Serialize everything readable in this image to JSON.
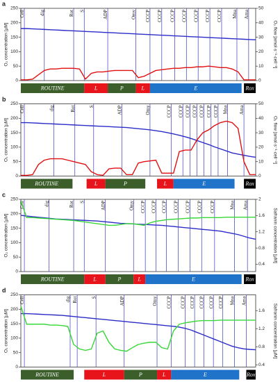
{
  "chart_data": [
    {
      "type": "line",
      "panel": "a",
      "ylabel": "O₂ concentration [µM]",
      "y2label": "O₂ flow [amol·s⁻¹·cell⁻¹]",
      "xlim": [
        0,
        100
      ],
      "ylim": [
        0,
        250
      ],
      "yticks": [
        0,
        50,
        100,
        150,
        200,
        250
      ],
      "y2lim": [
        0,
        50
      ],
      "y2ticks": [
        0,
        10,
        20,
        30,
        40,
        50
      ],
      "x": [
        0,
        2.5,
        5,
        7.5,
        10,
        12.5,
        15,
        17.5,
        20,
        22.5,
        25,
        27.5,
        30,
        32.5,
        35,
        37.5,
        40,
        42.5,
        45,
        47.5,
        50,
        52.5,
        55,
        57.5,
        60,
        62.5,
        65,
        67.5,
        70,
        72.5,
        75,
        77.5,
        80,
        82.5,
        85,
        87.5,
        90,
        92.5,
        95,
        97.5,
        100
      ],
      "series": [
        {
          "color": "#2b2bc8",
          "values": [
            180,
            180,
            179,
            178,
            177,
            176,
            175,
            174,
            173,
            172,
            171,
            170,
            169,
            168,
            167,
            166,
            165,
            164,
            163,
            162,
            161,
            160,
            159,
            158,
            157,
            156,
            155,
            154,
            153,
            152,
            151,
            150,
            149,
            148,
            147,
            146,
            145,
            144,
            143,
            142,
            141
          ]
        },
        {
          "color": "#e01010",
          "axis": "y2",
          "values": [
            0.5,
            0.5,
            1,
            4,
            7,
            8,
            8,
            8.5,
            8.5,
            8.5,
            8,
            1,
            5,
            6,
            6,
            6.5,
            7,
            7,
            7,
            7,
            2,
            3,
            5,
            7,
            7.5,
            8,
            8.5,
            8.5,
            9,
            9,
            9.5,
            9.5,
            10,
            9.5,
            9,
            9,
            8,
            6,
            0.5,
            0.5,
            0.5
          ]
        }
      ],
      "events": [
        {
          "label": "Cell",
          "x": 1.5
        },
        {
          "label": "dig",
          "x": 10
        },
        {
          "label": "Rot",
          "x": 22.5
        },
        {
          "label": "S",
          "x": 27
        },
        {
          "label": "ADP",
          "x": 37
        },
        {
          "label": "Omy",
          "x": 49
        },
        {
          "label": "CCCP",
          "x": 55
        },
        {
          "label": "CCCP",
          "x": 60
        },
        {
          "label": "CCCP",
          "x": 65.5
        },
        {
          "label": "CCCP",
          "x": 70.5
        },
        {
          "label": "CCCP",
          "x": 75.5
        },
        {
          "label": "CCCP",
          "x": 80.5
        },
        {
          "label": "CCCP",
          "x": 85.5
        },
        {
          "label": "Mna",
          "x": 92
        },
        {
          "label": "Ama",
          "x": 97
        }
      ],
      "states": [
        {
          "label": "ROUTINE",
          "start": 0,
          "end": 27,
          "color": "#3b5e2b"
        },
        {
          "label": "L",
          "start": 27,
          "end": 37,
          "color": "#e8141c"
        },
        {
          "label": "P",
          "start": 37,
          "end": 49,
          "color": "#3b5e2b"
        },
        {
          "label": "L",
          "start": 49,
          "end": 55,
          "color": "#e8141c"
        },
        {
          "label": "E",
          "start": 55,
          "end": 94,
          "color": "#1f73c8"
        },
        {
          "label": "Rox",
          "start": 95,
          "end": 100,
          "color": "#000000"
        }
      ]
    },
    {
      "type": "line",
      "panel": "b",
      "ylabel": "O₂ concentration [µM]",
      "y2label": "O₂ flow [amol·s⁻¹·cell⁻¹]",
      "xlim": [
        0,
        100
      ],
      "ylim": [
        0,
        250
      ],
      "yticks": [
        0,
        50,
        100,
        150,
        200,
        250
      ],
      "y2lim": [
        0,
        50
      ],
      "y2ticks": [
        0,
        10,
        20,
        30,
        40,
        50
      ],
      "x": [
        0,
        2.5,
        5,
        7.5,
        10,
        12.5,
        15,
        17.5,
        20,
        22.5,
        25,
        27.5,
        30,
        32.5,
        35,
        37.5,
        40,
        42.5,
        45,
        47.5,
        50,
        52.5,
        55,
        57.5,
        60,
        62.5,
        65,
        67.5,
        70,
        72.5,
        75,
        77.5,
        80,
        82.5,
        85,
        87.5,
        90,
        92.5,
        95,
        97.5,
        100
      ],
      "series": [
        {
          "color": "#2b2bc8",
          "values": [
            185,
            185,
            184,
            183,
            182,
            181,
            180,
            179,
            178,
            177,
            176,
            175,
            174,
            173,
            172,
            171,
            170,
            169,
            168,
            166,
            164,
            162,
            160,
            157,
            154,
            150,
            146,
            141,
            136,
            130,
            123,
            116,
            109,
            101,
            94,
            87,
            80,
            76,
            72,
            68,
            65
          ]
        },
        {
          "color": "#e01010",
          "axis": "y2",
          "values": [
            0.5,
            0.5,
            1,
            8,
            11,
            12,
            12,
            12,
            11,
            10,
            9,
            8,
            3,
            1,
            0.5,
            5,
            5.5,
            5.5,
            1,
            1,
            9,
            10,
            10.5,
            11,
            2,
            2,
            2,
            17,
            18,
            18,
            25,
            30,
            32,
            35,
            37,
            38,
            37,
            33,
            10,
            1,
            1
          ]
        }
      ],
      "events": [
        {
          "label": "Cell",
          "x": 1.5
        },
        {
          "label": "dig",
          "x": 14
        },
        {
          "label": "Rot",
          "x": 23
        },
        {
          "label": "S",
          "x": 31
        },
        {
          "label": "ADP",
          "x": 43
        },
        {
          "label": "Omy",
          "x": 55
        },
        {
          "label": "CCCP",
          "x": 64
        },
        {
          "label": "CCCP",
          "x": 69
        },
        {
          "label": "CCCP",
          "x": 72
        },
        {
          "label": "CCCP",
          "x": 75
        },
        {
          "label": "CCCP",
          "x": 78
        },
        {
          "label": "CCCP",
          "x": 81
        },
        {
          "label": "CCCP",
          "x": 84
        },
        {
          "label": "Mna",
          "x": 88
        },
        {
          "label": "Ama",
          "x": 95
        }
      ],
      "states": [
        {
          "label": "ROUTINE",
          "start": 0,
          "end": 22,
          "color": "#3b5e2b"
        },
        {
          "label": "L",
          "start": 28,
          "end": 36,
          "color": "#e8141c"
        },
        {
          "label": "P",
          "start": 36,
          "end": 53,
          "color": "#3b5e2b"
        },
        {
          "label": "L",
          "start": 58,
          "end": 65,
          "color": "#e8141c"
        },
        {
          "label": "E",
          "start": 65,
          "end": 91,
          "color": "#1f73c8"
        },
        {
          "label": "Rox",
          "start": 95,
          "end": 100,
          "color": "#000000"
        }
      ]
    },
    {
      "type": "line",
      "panel": "c",
      "ylabel": "O₂ concentration [µM]",
      "y2label": "Safranin concentration [µM]",
      "xlim": [
        0,
        100
      ],
      "ylim": [
        0,
        250
      ],
      "yticks": [
        0,
        50,
        100,
        150,
        200,
        250
      ],
      "y2lim": [
        0.22,
        2
      ],
      "y2ticks": [
        0.4,
        0.8,
        1.2,
        1.6,
        2
      ],
      "x": [
        0,
        2.5,
        5,
        7.5,
        10,
        12.5,
        15,
        17.5,
        20,
        22.5,
        25,
        27.5,
        30,
        32.5,
        35,
        37.5,
        40,
        42.5,
        45,
        47.5,
        50,
        52.5,
        55,
        57.5,
        60,
        62.5,
        65,
        67.5,
        70,
        72.5,
        75,
        77.5,
        80,
        82.5,
        85,
        87.5,
        90,
        92.5,
        95,
        97.5,
        100
      ],
      "series": [
        {
          "color": "#2b2bc8",
          "values": [
            195,
            192,
            190,
            188,
            186,
            184,
            182,
            181,
            180,
            179,
            178,
            177,
            176,
            175,
            173,
            171,
            169,
            167,
            166,
            165,
            164,
            163,
            162,
            161,
            160,
            158,
            156,
            154,
            152,
            150,
            148,
            146,
            144,
            142,
            140,
            136,
            132,
            128,
            122,
            116,
            112
          ]
        },
        {
          "color": "#38d838",
          "axis": "y2",
          "values": [
            1.95,
            1.55,
            1.55,
            1.54,
            1.53,
            1.52,
            1.51,
            1.5,
            1.49,
            1.48,
            1.46,
            1.44,
            1.42,
            1.4,
            1.38,
            1.36,
            1.36,
            1.38,
            1.4,
            1.4,
            1.38,
            1.36,
            1.42,
            1.46,
            1.48,
            1.5,
            1.51,
            1.52,
            1.53,
            1.54,
            1.54,
            1.55,
            1.55,
            1.55,
            1.55,
            1.56,
            1.56,
            1.56,
            1.56,
            1.56,
            1.56
          ]
        }
      ],
      "events": [
        {
          "label": "Cell",
          "x": 1.5
        },
        {
          "label": "dig",
          "x": 12
        },
        {
          "label": "Rot",
          "x": 22.5
        },
        {
          "label": "S",
          "x": 27
        },
        {
          "label": "ADP",
          "x": 36
        },
        {
          "label": "Omy",
          "x": 48
        },
        {
          "label": "CCCP",
          "x": 53
        },
        {
          "label": "CCCP",
          "x": 57.5
        },
        {
          "label": "CCCP",
          "x": 62
        },
        {
          "label": "CCCP",
          "x": 67
        },
        {
          "label": "CCCP",
          "x": 72
        },
        {
          "label": "CCCP",
          "x": 77
        },
        {
          "label": "CCCP",
          "x": 82.5
        },
        {
          "label": "Mna",
          "x": 91
        },
        {
          "label": "Ama",
          "x": 96.5
        }
      ],
      "states": [
        {
          "label": "ROUTINE",
          "start": 0,
          "end": 27,
          "color": "#3b5e2b"
        },
        {
          "label": "L",
          "start": 27,
          "end": 36,
          "color": "#e8141c"
        },
        {
          "label": "P",
          "start": 36,
          "end": 48,
          "color": "#3b5e2b"
        },
        {
          "label": "L",
          "start": 48,
          "end": 53,
          "color": "#e8141c"
        },
        {
          "label": "E",
          "start": 53,
          "end": 94,
          "color": "#1f73c8"
        },
        {
          "label": "Rox",
          "start": 95,
          "end": 100,
          "color": "#000000"
        }
      ]
    },
    {
      "type": "line",
      "panel": "d",
      "ylabel": "O₂ concentration [µM]",
      "y2label": "Safranin concentration [µM]",
      "xlim": [
        0,
        100
      ],
      "ylim": [
        0,
        250
      ],
      "yticks": [
        0,
        50,
        100,
        150,
        200,
        250
      ],
      "y2lim": [
        0.35,
        1.95
      ],
      "y2ticks": [
        0.4,
        0.8,
        1.2,
        1.6
      ],
      "x": [
        0,
        2.5,
        5,
        7.5,
        10,
        12.5,
        15,
        17.5,
        20,
        22.5,
        25,
        27.5,
        30,
        32.5,
        35,
        37.5,
        40,
        42.5,
        45,
        47.5,
        50,
        52.5,
        55,
        57.5,
        60,
        62.5,
        65,
        67.5,
        70,
        72.5,
        75,
        77.5,
        80,
        82.5,
        85,
        87.5,
        90,
        92.5,
        95,
        97.5,
        100
      ],
      "series": [
        {
          "color": "#2b2bc8",
          "values": [
            185,
            185,
            184,
            183,
            182,
            181,
            180,
            179,
            177,
            175,
            173,
            171,
            169,
            167,
            165,
            163,
            161,
            159,
            157,
            155,
            153,
            151,
            149,
            147,
            145,
            143,
            141,
            138,
            134,
            128,
            120,
            112,
            104,
            96,
            88,
            80,
            72,
            67,
            63,
            61,
            60
          ]
        },
        {
          "color": "#38d838",
          "axis": "y2",
          "values": [
            1.7,
            1.3,
            1.3,
            1.3,
            1.3,
            1.28,
            1.28,
            1.27,
            1.25,
            0.85,
            0.75,
            0.72,
            0.75,
            1.1,
            1.15,
            0.9,
            0.75,
            0.72,
            0.7,
            0.78,
            0.85,
            0.88,
            0.9,
            0.9,
            0.78,
            0.75,
            1.15,
            1.3,
            1.33,
            1.35,
            1.37,
            1.38,
            1.38,
            1.38,
            1.39,
            1.39,
            1.39,
            1.39,
            1.39,
            1.39,
            1.39
          ]
        }
      ],
      "events": [
        {
          "label": "Cell",
          "x": 1.5
        },
        {
          "label": "dig",
          "x": 21
        },
        {
          "label": "Rot",
          "x": 24
        },
        {
          "label": "S",
          "x": 32
        },
        {
          "label": "ADP",
          "x": 44
        },
        {
          "label": "Omy",
          "x": 58
        },
        {
          "label": "CCCP",
          "x": 64
        },
        {
          "label": "CCCP",
          "x": 70
        },
        {
          "label": "CCCP",
          "x": 74
        },
        {
          "label": "CCCP",
          "x": 78
        },
        {
          "label": "CCCP",
          "x": 82
        },
        {
          "label": "CCCP",
          "x": 86
        },
        {
          "label": "Mna",
          "x": 91
        },
        {
          "label": "Ama",
          "x": 96
        }
      ],
      "states": [
        {
          "label": "ROUTINE",
          "start": 0,
          "end": 22.5,
          "color": "#3b5e2b"
        },
        {
          "label": "L",
          "start": 27,
          "end": 44,
          "color": "#e8141c"
        },
        {
          "label": "P",
          "start": 44,
          "end": 58,
          "color": "#3b5e2b"
        },
        {
          "label": "L",
          "start": 58,
          "end": 64,
          "color": "#e8141c"
        },
        {
          "label": "E",
          "start": 64,
          "end": 93,
          "color": "#1f73c8"
        },
        {
          "label": "Rox",
          "start": 96,
          "end": 100,
          "color": "#000000"
        }
      ]
    }
  ]
}
